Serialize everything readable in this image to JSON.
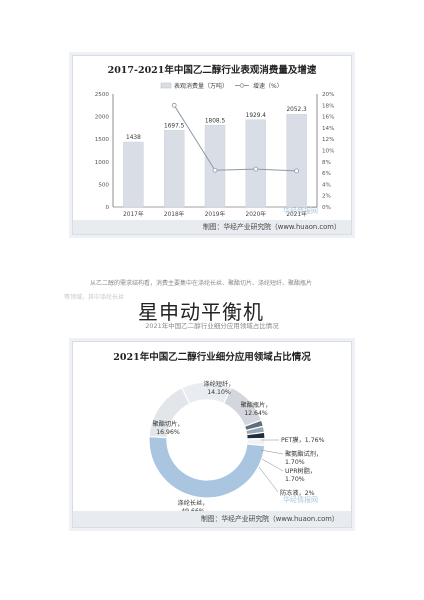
{
  "chart_data": [
    {
      "type": "bar",
      "title": "2017-2021年中国乙二醇行业表观消费量及增速",
      "categories": [
        "2017年",
        "2018年",
        "2019年",
        "2020年",
        "2021年"
      ],
      "series": [
        {
          "name": "表观消费量（万吨）",
          "type": "bar",
          "values": [
            1438,
            1697.5,
            1808.5,
            1929.4,
            2052.3
          ],
          "color": "#d9dde5"
        },
        {
          "name": "增速（%）",
          "type": "line",
          "axis": "right",
          "values": [
            null,
            18.0,
            6.5,
            6.7,
            6.4
          ],
          "color": "#8c9aa8"
        }
      ],
      "value_labels": [
        "1438",
        "1697.5",
        "1808.5",
        "1929.4",
        "2052.3"
      ],
      "ylim": [
        0,
        2500
      ],
      "yticks": [
        "0",
        "500",
        "1000",
        "1500",
        "2000",
        "2500"
      ],
      "y2lim": [
        0,
        20
      ],
      "y2ticks": [
        "0%",
        "2%",
        "4%",
        "6%",
        "8%",
        "10%",
        "12%",
        "14%",
        "16%",
        "18%",
        "20%"
      ],
      "legend_position": "top",
      "source": "制图：华经产业研究院（www.huaon.com）",
      "watermark": "华经情报网"
    },
    {
      "type": "pie",
      "title": "2021年中国乙二醇行业细分应用领域占比情况",
      "categories": [
        "涤纶长丝",
        "涤纶短纤",
        "聚酯切片",
        "聚酯瓶片",
        "PET膜",
        "聚氨酯试剂",
        "UPR树脂",
        "防冻液"
      ],
      "values": [
        49.66,
        14.1,
        16.96,
        12.64,
        1.76,
        1.7,
        1.7,
        2.0
      ],
      "labels": [
        "涤纶长丝，\n49.66%",
        "涤纶短纤，\n14.10%",
        "聚酯切片，\n16.96%",
        "聚酯瓶片，\n12.64%",
        "PET膜，1.76%",
        "聚氨酯试剂，\n1.70%",
        "UPR树脂，\n1.70%",
        "防冻液，2%"
      ],
      "colors": [
        "#a9c5e0",
        "#e9edf2",
        "#e2e5ea",
        "#d3d7dd",
        "#5e6e80",
        "#9aa6b2",
        "#1f2d3d",
        "#f0f2f5"
      ],
      "source": "制图：华经产业研究院（www.huaon.com）",
      "watermark": "华经情报网"
    }
  ],
  "text": {
    "para1": "从乙二醇的需求结构看，消费主要集中在涤纶长丝、聚酯切片、涤纶短纤、聚酯瓶片",
    "para2": "等领域，其中涤纶长丝",
    "overlay": "星申动平衡机",
    "caption": "2021年中国乙二醇行业细分应用领域占比情况"
  }
}
